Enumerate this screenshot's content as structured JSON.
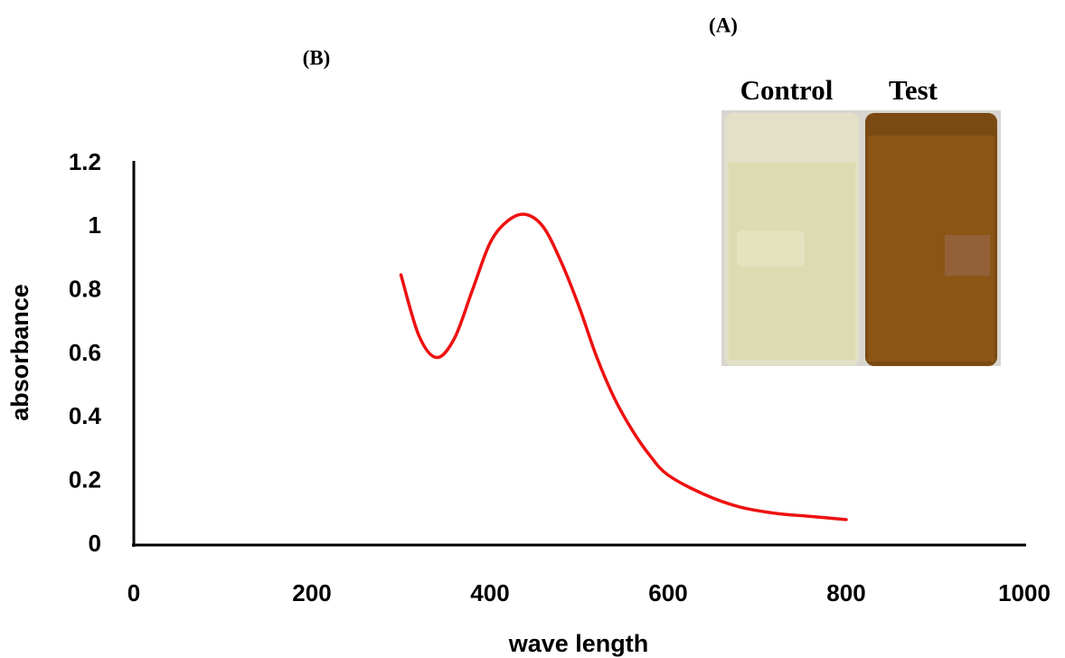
{
  "chart_data": {
    "type": "line",
    "xlabel": "wave length",
    "ylabel": "absorbance",
    "x": [
      300,
      320,
      340,
      360,
      380,
      400,
      420,
      440,
      460,
      480,
      500,
      520,
      540,
      560,
      580,
      600,
      640,
      680,
      720,
      760,
      800
    ],
    "values": [
      0.85,
      0.66,
      0.59,
      0.65,
      0.8,
      0.95,
      1.02,
      1.04,
      1.0,
      0.89,
      0.75,
      0.59,
      0.46,
      0.36,
      0.28,
      0.22,
      0.16,
      0.12,
      0.1,
      0.09,
      0.08
    ],
    "color": "#ee1111",
    "xlim": [
      0,
      1000
    ],
    "xticks": [
      0,
      200,
      400,
      600,
      800,
      1000
    ],
    "ylim": [
      0,
      1.2
    ],
    "yticks": [
      0,
      0.2,
      0.4,
      0.6,
      0.8,
      1,
      1.2
    ],
    "grid": false
  },
  "panel_labels": {
    "photo": "(A)",
    "chart": "(B)"
  },
  "photo_labels": {
    "left": "Control",
    "right": "Test"
  }
}
